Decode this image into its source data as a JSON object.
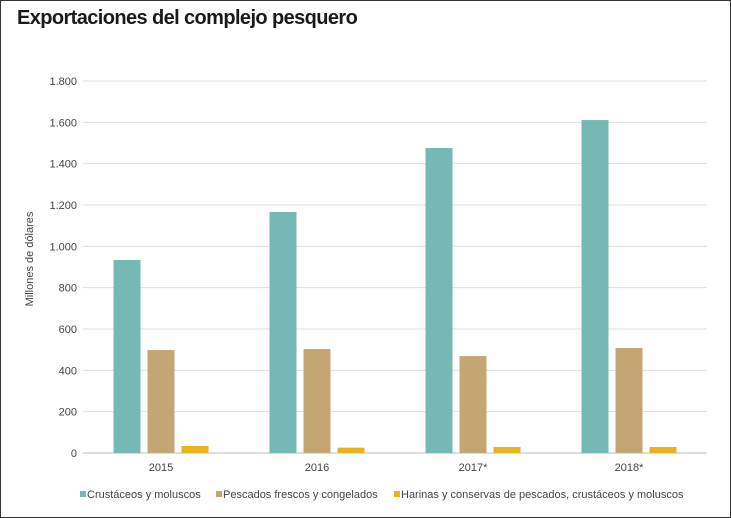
{
  "chart_data": {
    "type": "bar",
    "title": "Exportaciones del complejo pesquero",
    "xlabel": "",
    "ylabel": "Millones de dólares",
    "ylim": [
      0,
      1800
    ],
    "yticks": [
      0,
      200,
      400,
      600,
      800,
      1000,
      1200,
      1400,
      1600,
      1800
    ],
    "ytick_labels": [
      "0",
      "200",
      "400",
      "600",
      "800",
      "1.000",
      "1.200",
      "1.400",
      "1.600",
      "1.800"
    ],
    "grid": true,
    "legend_position": "bottom",
    "categories": [
      "2015",
      "2016",
      "2017*",
      "2018*"
    ],
    "series": [
      {
        "name": "Crustáceos y moluscos",
        "color": "#76b8b3",
        "values": [
          934,
          1166,
          1476,
          1611
        ]
      },
      {
        "name": "Pescados frescos y congelados",
        "color": "#c4a574",
        "values": [
          498,
          503,
          469,
          508
        ]
      },
      {
        "name": "Harinas y conservas de pescados, crustáceos y moluscos",
        "color": "#e8b220",
        "values": [
          34,
          26,
          29,
          29
        ]
      }
    ]
  }
}
